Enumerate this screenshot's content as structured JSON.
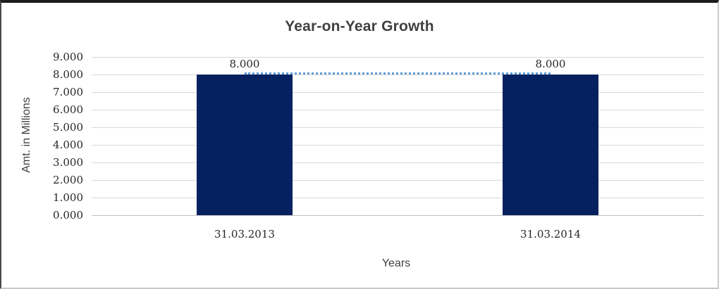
{
  "chart_data": {
    "type": "bar",
    "title": "Year-on-Year Growth",
    "xlabel": "Years",
    "ylabel": "Amt. in Millions",
    "categories": [
      "31.03.2013",
      "31.03.2014"
    ],
    "values": [
      8000,
      8000
    ],
    "data_labels": [
      "8.000",
      "8.000"
    ],
    "ylim": [
      0,
      9000
    ],
    "yticks": [
      {
        "value": 9000,
        "label": "9.000"
      },
      {
        "value": 8000,
        "label": "8.000"
      },
      {
        "value": 7000,
        "label": "7.000"
      },
      {
        "value": 6000,
        "label": "6.000"
      },
      {
        "value": 5000,
        "label": "5.000"
      },
      {
        "value": 4000,
        "label": "4.000"
      },
      {
        "value": 3000,
        "label": "3.000"
      },
      {
        "value": 2000,
        "label": "2.000"
      },
      {
        "value": 1000,
        "label": "1.000"
      },
      {
        "value": 0,
        "label": "0.000"
      }
    ],
    "grid": "horizontal",
    "legend": "none",
    "trendline": {
      "style": "dotted",
      "y": 8000,
      "from_category": 0,
      "to_category": 1
    },
    "colors": {
      "bar": "#05215F",
      "trendline": "#5B9BD5",
      "gridline": "#D9D9D9",
      "baseline": "#BFBFBF",
      "title": "#404040",
      "tick_text": "#262626",
      "axis_title_text": "#404040"
    }
  }
}
